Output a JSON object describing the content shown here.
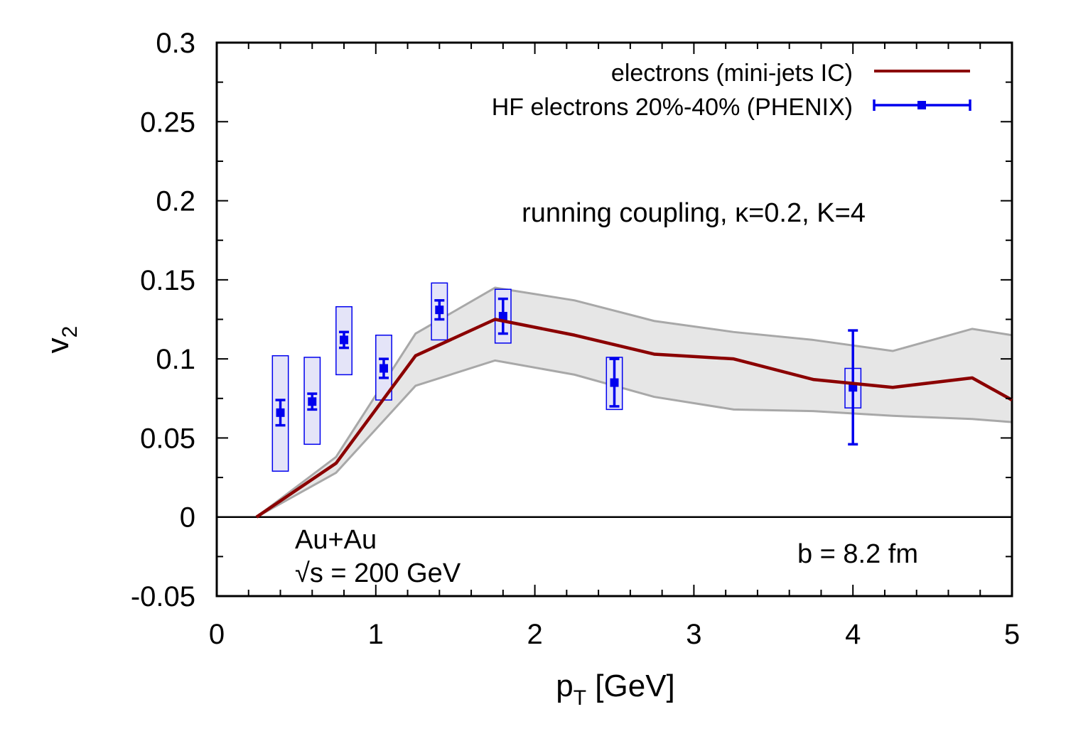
{
  "chart_data": {
    "type": "line",
    "title": "",
    "xlabel": {
      "main": "p",
      "subscript": "T",
      "suffix": " [GeV]"
    },
    "ylabel": {
      "main": "v",
      "subscript": "2"
    },
    "xlim": [
      0,
      5
    ],
    "ylim": [
      -0.05,
      0.3
    ],
    "x_ticks": [
      "0",
      "1",
      "2",
      "3",
      "4",
      "5"
    ],
    "y_ticks": [
      "-0.05",
      "0",
      "0.05",
      "0.1",
      "0.15",
      "0.2",
      "0.25",
      "0.3"
    ],
    "x_tick_values": [
      0,
      1,
      2,
      3,
      4,
      5
    ],
    "y_tick_values": [
      -0.05,
      0,
      0.05,
      0.1,
      0.15,
      0.2,
      0.25,
      0.3
    ],
    "zero_line": 0,
    "legend": {
      "position": "top-right",
      "entries": [
        "electrons (mini-jets IC)",
        "HF electrons 20%-40% (PHENIX)"
      ]
    },
    "band": {
      "x": [
        0.25,
        0.75,
        1.25,
        1.75,
        2.25,
        2.75,
        3.25,
        3.75,
        4.25,
        4.75,
        5.0
      ],
      "upper": [
        0.0,
        0.038,
        0.116,
        0.145,
        0.137,
        0.124,
        0.117,
        0.112,
        0.105,
        0.119,
        0.115
      ],
      "lower": [
        0.0,
        0.028,
        0.083,
        0.099,
        0.09,
        0.076,
        0.068,
        0.067,
        0.064,
        0.062,
        0.06
      ],
      "color": "#e6e6e6",
      "edge_color": "#a8a8a8"
    },
    "series": [
      {
        "name": "electrons (mini-jets IC)",
        "color": "#8b0000",
        "x": [
          0.25,
          0.75,
          1.25,
          1.75,
          2.25,
          2.75,
          3.25,
          3.75,
          4.25,
          4.75,
          5.0
        ],
        "y": [
          0.0,
          0.034,
          0.102,
          0.125,
          0.115,
          0.103,
          0.1,
          0.087,
          0.082,
          0.088,
          0.074
        ]
      },
      {
        "name": "HF electrons 20%-40% (PHENIX)",
        "color": "#0000ee",
        "box_fill": "#e4e4f8",
        "x": [
          0.4,
          0.6,
          0.8,
          1.05,
          1.4,
          1.8,
          2.5,
          4.0
        ],
        "y": [
          0.066,
          0.073,
          0.112,
          0.094,
          0.131,
          0.127,
          0.085,
          0.082
        ],
        "err": [
          0.008,
          0.005,
          0.005,
          0.006,
          0.006,
          0.011,
          0.015,
          0.036
        ],
        "sys_low": [
          0.029,
          0.046,
          0.09,
          0.074,
          0.112,
          0.11,
          0.068,
          0.069
        ],
        "sys_high": [
          0.102,
          0.101,
          0.133,
          0.115,
          0.148,
          0.144,
          0.101,
          0.094
        ],
        "box_halfwidth": 0.05
      }
    ],
    "annotations": {
      "model": "running coupling, κ=0.2, K=4",
      "system": "Au+Au",
      "energy": "√s = 200 GeV",
      "impact": "b = 8.2 fm"
    }
  }
}
